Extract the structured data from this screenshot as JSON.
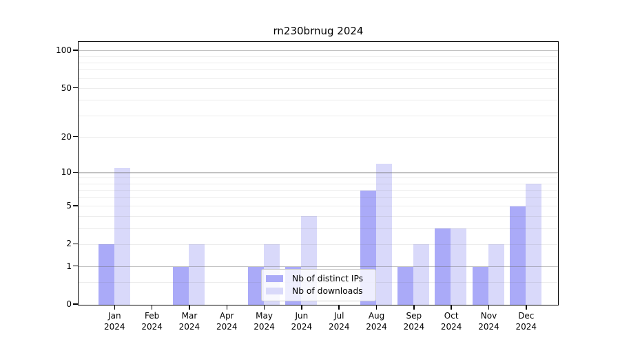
{
  "title": "rn230brnug 2024",
  "chart_data": {
    "type": "bar",
    "title": "rn230brnug 2024",
    "x_categories": [
      "Jan",
      "Feb",
      "Mar",
      "Apr",
      "May",
      "Jun",
      "Jul",
      "Aug",
      "Sep",
      "Oct",
      "Nov",
      "Dec"
    ],
    "x_sublabel": "2024",
    "series": [
      {
        "name": "Nb of distinct IPs",
        "color": "#aaaaf8",
        "values": [
          2,
          0,
          1,
          0,
          1,
          1,
          0,
          7,
          1,
          3,
          1,
          5
        ]
      },
      {
        "name": "Nb of downloads",
        "color": "#d9d9fa",
        "values": [
          11,
          0,
          2,
          0,
          2,
          4,
          0,
          12,
          2,
          3,
          2,
          8
        ]
      }
    ],
    "y_scale": "log10(1+v)",
    "ylim_top": 115,
    "y_ticks": [
      0,
      1,
      2,
      5,
      10,
      20,
      50,
      100
    ],
    "y_major_gridlines": [
      1,
      10,
      100
    ],
    "y_minor_gridlines": [
      0.5,
      2,
      3,
      4,
      5,
      6,
      7,
      8,
      9,
      20,
      30,
      40,
      50,
      60,
      70,
      80,
      90
    ],
    "legend_position": "lower center inside plot",
    "colors": {
      "axis": "#000000",
      "major_grid": "#c9c9c9",
      "minor_grid": "#ededed",
      "background": "#ffffff"
    }
  }
}
